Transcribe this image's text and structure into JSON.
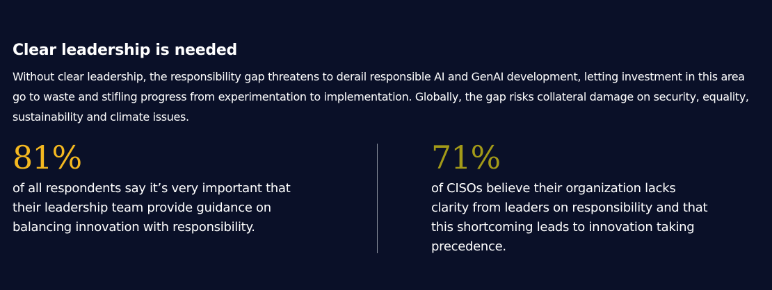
{
  "section": {
    "title": "Clear leadership is needed",
    "intro": "Without clear leadership, the responsibility gap threatens to derail responsible AI and GenAI development, letting investment in this area go to waste and stifling progress from experimentation to implementation. Globally, the gap risks collateral damage on security, equality, sustainability and climate issues."
  },
  "stats": [
    {
      "value": "81%",
      "description": "of all respondents say it’s very important that their leadership team provide guidance on balancing innovation with responsibility."
    },
    {
      "value": "71%",
      "description": "of CISOs believe their organization lacks clarity from leaders on responsibility and that this shortcoming leads to innovation taking precedence."
    }
  ],
  "colors": {
    "background": "#0a1028",
    "stat_primary": "#f4b820",
    "stat_secondary": "#a39a18",
    "divider": "#8a8f9c"
  }
}
